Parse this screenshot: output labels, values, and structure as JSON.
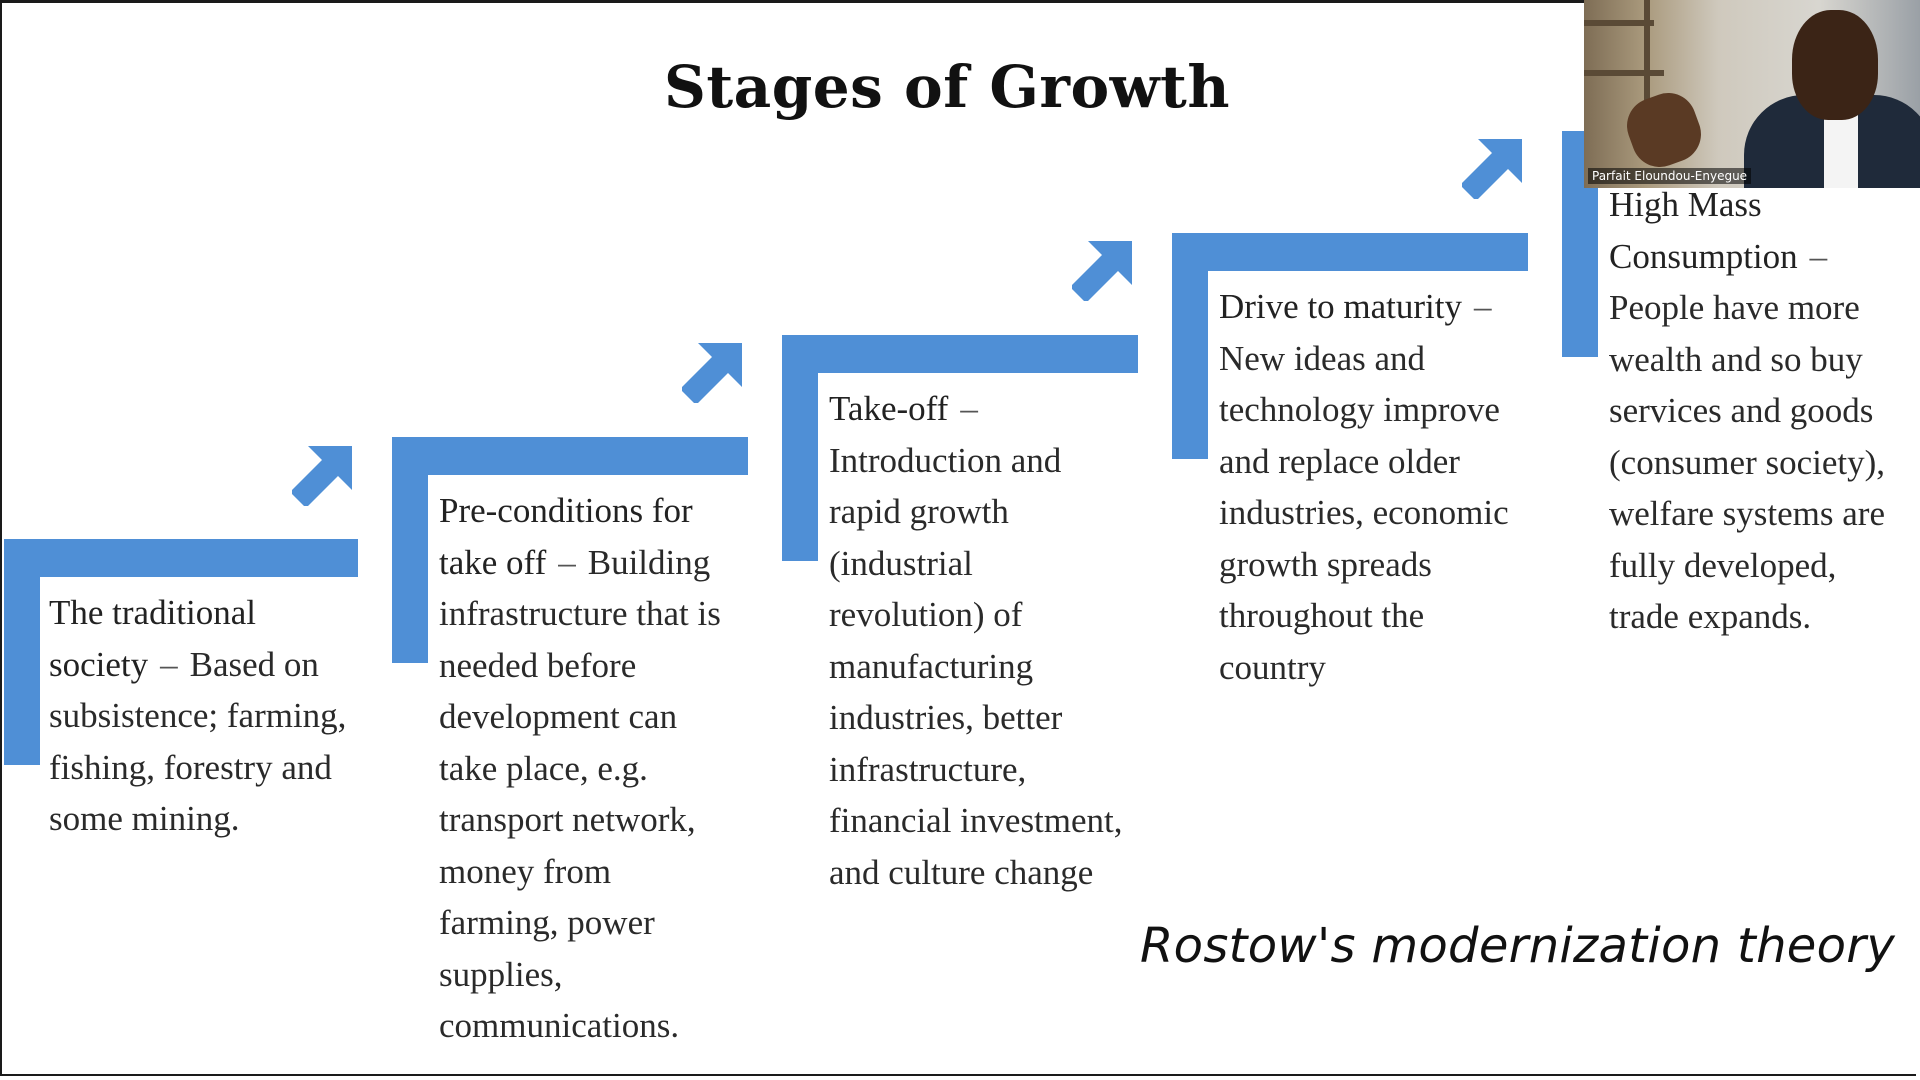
{
  "slide": {
    "title": "Stages of Growth",
    "caption": "Rostow's modernization theory",
    "accent_color": "#4f8fd6",
    "stages": [
      {
        "name": "The traditional society",
        "dash": "–",
        "description": "Based on subsistence; farming, fishing, forestry and some mining."
      },
      {
        "name": "Pre-conditions for take off",
        "dash": "–",
        "description": "Building infrastructure that is needed before development can take place, e.g. transport network, money from farming, power supplies, communications."
      },
      {
        "name": "Take-off",
        "dash": "–",
        "description": "Introduction and rapid growth (industrial revolution) of manufacturing industries, better infrastructure, financial investment, and culture change"
      },
      {
        "name": "Drive to maturity",
        "dash": "–",
        "description": "New ideas and technology improve and replace older industries, economic growth spreads throughout the country"
      },
      {
        "name": "High Mass Consumption",
        "dash": "–",
        "description": "People have more wealth and so buy services and goods (consumer society), welfare systems are fully developed, trade expands."
      }
    ]
  },
  "video": {
    "participant_name": "Parfait Eloundou-Enyegue"
  }
}
